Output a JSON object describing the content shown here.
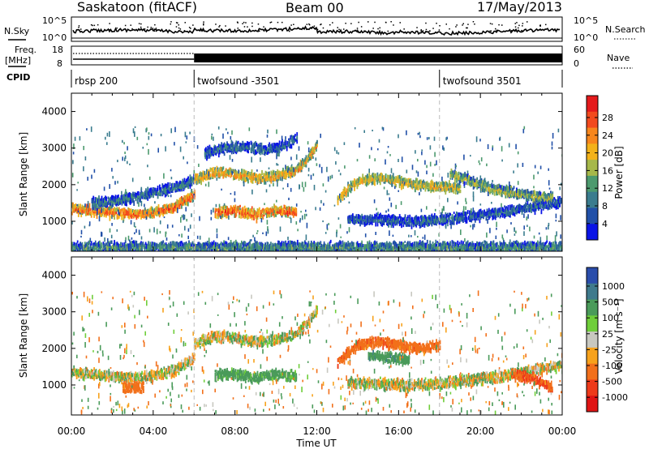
{
  "header": {
    "site": "Saskatoon (fitACF)",
    "beam": "Beam 00",
    "date": "17/May/2013"
  },
  "panels": {
    "nsky": {
      "label": "N.Sky",
      "ticks_left": [
        "10^5",
        "10^0"
      ],
      "ticks_right": [
        "10^5",
        "10^0"
      ],
      "right_label": "N.Search"
    },
    "freq": {
      "label_top": "Freq.",
      "label_unit": "[MHz]",
      "ticks_left": [
        "18",
        "8"
      ],
      "ticks_right": [
        "60",
        "0"
      ],
      "right_label": "Nave"
    },
    "cpid": {
      "label": "CPID",
      "segments": [
        {
          "name": "rbsp 200",
          "start_hour": 0
        },
        {
          "name": "twofsound -3501",
          "start_hour": 6
        },
        {
          "name": "twofsound 3501",
          "start_hour": 18
        }
      ]
    }
  },
  "colorbars": {
    "power": {
      "title": "Power [dB]",
      "ticks": [
        "28",
        "24",
        "20",
        "16",
        "12",
        "8",
        "4"
      ],
      "colors": [
        "#e41a1c",
        "#f24a1e",
        "#f7861d",
        "#f3b21a",
        "#a6b84a",
        "#4c9a6e",
        "#3a7c8e",
        "#2150a8",
        "#0a14e6"
      ]
    },
    "velocity": {
      "title": "Velocity [m s⁻¹]",
      "ticks": [
        "1000",
        "500",
        "100",
        "25",
        "-25",
        "-100",
        "-500",
        "-1000"
      ],
      "colors": [
        "#2a4dab",
        "#3f7a8c",
        "#4a9b5a",
        "#6fce3a",
        "#c8c8c0",
        "#f7a21c",
        "#f2701b",
        "#ee3a1a",
        "#e01414"
      ]
    }
  },
  "axes": {
    "ylabel": "Slant Range [km]",
    "yticks": [
      "1000",
      "2000",
      "3000",
      "4000"
    ],
    "xlabel": "Time UT",
    "xticks": [
      "00:00",
      "04:00",
      "08:00",
      "12:00",
      "16:00",
      "20:00",
      "00:00"
    ]
  },
  "chart_data": [
    {
      "type": "heatmap",
      "title": "",
      "variable": "Power",
      "unit": "dB",
      "xlabel": "Time UT",
      "ylabel": "Slant Range [km]",
      "xlim_hours": [
        0,
        24
      ],
      "ylim_km": [
        180,
        4500
      ],
      "colorbar_range": [
        0,
        30
      ],
      "series": [
        {
          "x_hours": [
            0.0,
            1.0,
            2.0,
            3.0,
            4.0,
            5.0,
            6.0
          ],
          "y_km": [
            1350,
            1300,
            1250,
            1200,
            1250,
            1400,
            1750
          ],
          "value": 26
        },
        {
          "x_hours": [
            1.0,
            2.5,
            4.0,
            5.5,
            6.0
          ],
          "y_km": [
            1500,
            1600,
            1800,
            2000,
            2200
          ],
          "value": 10
        },
        {
          "x_hours": [
            6.0,
            7.0,
            8.0,
            9.0,
            10.0,
            11.0,
            11.5,
            12.0
          ],
          "y_km": [
            2150,
            2350,
            2300,
            2200,
            2250,
            2400,
            2700,
            3100
          ],
          "value": 22
        },
        {
          "x_hours": [
            7.0,
            8.0,
            9.0,
            10.0,
            11.0
          ],
          "y_km": [
            1250,
            1300,
            1200,
            1300,
            1250
          ],
          "value": 27
        },
        {
          "x_hours": [
            6.5,
            7.5,
            8.5,
            9.5,
            10.5,
            11.0
          ],
          "y_km": [
            2900,
            3000,
            3050,
            2950,
            3100,
            3300
          ],
          "value": 8
        },
        {
          "x_hours": [
            13.0,
            13.5,
            14.0,
            15.0,
            16.0,
            17.0,
            18.0,
            19.0
          ],
          "y_km": [
            1600,
            1900,
            2100,
            2200,
            2100,
            2000,
            1950,
            1900
          ],
          "value": 20
        },
        {
          "x_hours": [
            13.5,
            15.0,
            16.5,
            18.0,
            19.5,
            21.0,
            22.5,
            24.0
          ],
          "y_km": [
            1050,
            1050,
            1000,
            1050,
            1150,
            1250,
            1400,
            1550
          ],
          "value": 8
        },
        {
          "x_hours": [
            18.5,
            19.5,
            20.5,
            21.5,
            22.5,
            23.5
          ],
          "y_km": [
            2300,
            2100,
            1900,
            1800,
            1700,
            1650
          ],
          "value": 16
        },
        {
          "x_hours": [
            0.0,
            4.0,
            8.0,
            12.0,
            16.0,
            20.0,
            24.0
          ],
          "y_km": [
            300,
            300,
            300,
            300,
            300,
            300,
            300
          ],
          "value": 12
        }
      ]
    },
    {
      "type": "heatmap",
      "title": "",
      "variable": "Velocity",
      "unit": "m s^-1",
      "xlabel": "Time UT",
      "ylabel": "Slant Range [km]",
      "xlim_hours": [
        0,
        24
      ],
      "ylim_km": [
        180,
        4500
      ],
      "colorbar_range": [
        -1000,
        1000
      ],
      "series": [
        {
          "x_hours": [
            0.0,
            1.0,
            2.0,
            3.0,
            4.0,
            5.0,
            6.0
          ],
          "y_km": [
            1350,
            1300,
            1250,
            1200,
            1250,
            1400,
            1750
          ],
          "value": 0
        },
        {
          "x_hours": [
            2.5,
            3.0,
            3.5
          ],
          "y_km": [
            950,
            950,
            950
          ],
          "value": -250
        },
        {
          "x_hours": [
            6.0,
            7.0,
            8.0,
            9.0,
            10.0,
            11.0,
            11.5,
            12.0
          ],
          "y_km": [
            2150,
            2350,
            2300,
            2200,
            2250,
            2400,
            2700,
            3100
          ],
          "value": 0
        },
        {
          "x_hours": [
            7.0,
            8.0,
            9.0,
            10.0,
            11.0
          ],
          "y_km": [
            1250,
            1300,
            1200,
            1300,
            1250
          ],
          "value": 150
        },
        {
          "x_hours": [
            13.0,
            13.5,
            14.0,
            15.0,
            16.0,
            17.0,
            18.0
          ],
          "y_km": [
            1600,
            1900,
            2100,
            2200,
            2100,
            2000,
            2100
          ],
          "value": -300
        },
        {
          "x_hours": [
            14.5,
            15.5,
            16.5
          ],
          "y_km": [
            1800,
            1750,
            1700
          ],
          "value": 200
        },
        {
          "x_hours": [
            13.5,
            15.0,
            16.5,
            18.0,
            19.5,
            21.0,
            22.5,
            24.0
          ],
          "y_km": [
            1050,
            1050,
            1000,
            1050,
            1150,
            1250,
            1400,
            1550
          ],
          "value": 0
        },
        {
          "x_hours": [
            21.5,
            22.5,
            23.5
          ],
          "y_km": [
            1300,
            1200,
            900
          ],
          "value": -400
        }
      ]
    }
  ]
}
